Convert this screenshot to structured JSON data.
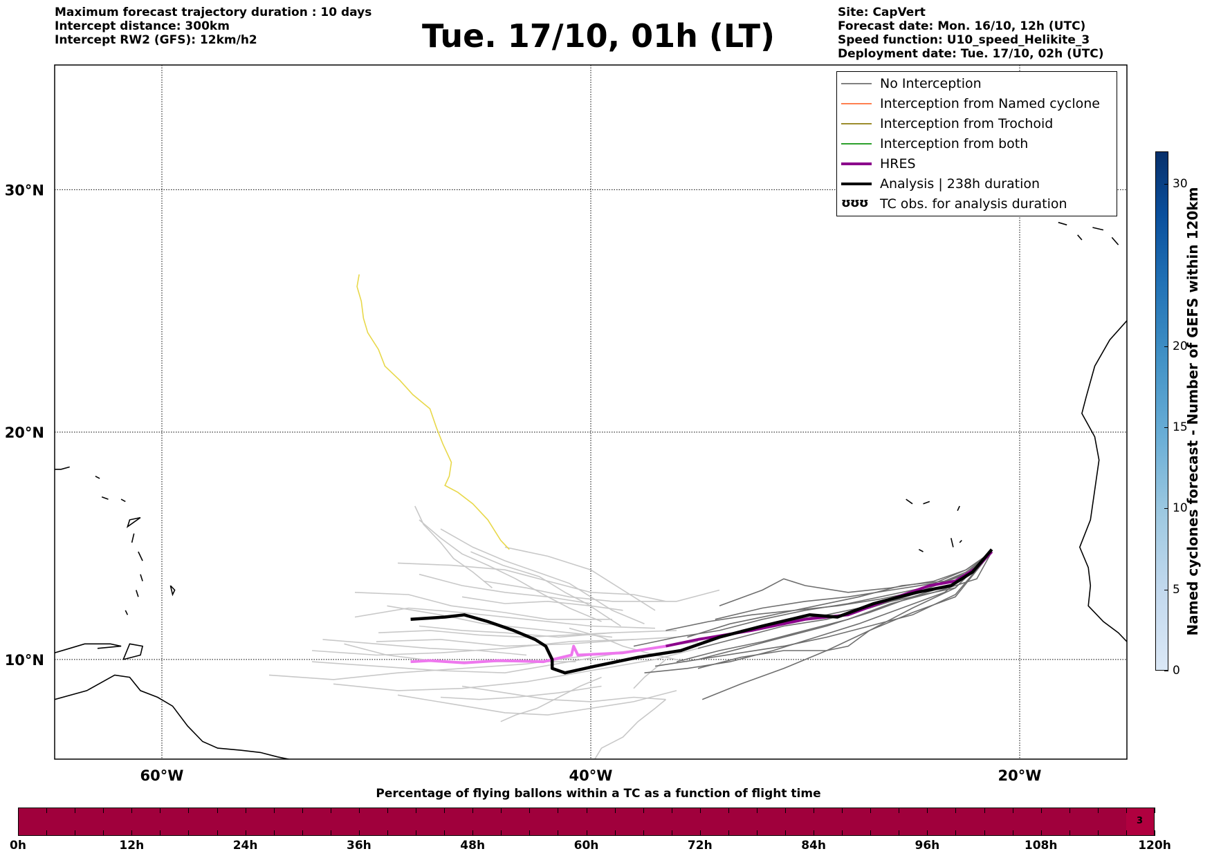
{
  "header_left": [
    "Maximum forecast trajectory duration : 10 days",
    "Intercept distance: 300km",
    "Intercept RW2 (GFS):  12km/h2"
  ],
  "title": "Tue. 17/10, 01h (LT)",
  "header_right": [
    "Site: CapVert",
    "Forecast date: Mon. 16/10, 12h (UTC)",
    "Speed function: U10_speed_Helikite_3",
    "Deployment date: Tue. 17/10, 02h (UTC)"
  ],
  "map": {
    "lat_labels": [
      "30°N",
      "20°N",
      "10°N"
    ],
    "lon_labels": [
      "60°W",
      "40°W",
      "20°W"
    ],
    "lat_range": [
      5.5,
      34.8
    ],
    "lon_range": [
      -65,
      -15
    ]
  },
  "legend": [
    {
      "label": "No Interception",
      "color": "#808080",
      "width": 1.5
    },
    {
      "label": "Interception from Named cyclone",
      "color": "#ff7f50",
      "width": 1.5
    },
    {
      "label": "Interception from Trochoid",
      "color": "#9c8c2c",
      "width": 1.5
    },
    {
      "label": "Interception from both",
      "color": "#2ca02c",
      "width": 1.5
    },
    {
      "label": "HRES",
      "color": "#8b008b",
      "width": 4
    },
    {
      "label": "Analysis | 238h duration",
      "color": "#000000",
      "width": 4
    },
    {
      "label": "TC obs. for analysis duration",
      "symbol": "ʊʊʊ"
    }
  ],
  "colorbar_right": {
    "label": "Named cyclones forecast - Number of GEFS within 120km",
    "ticks": [
      "0",
      "5",
      "10",
      "15",
      "20",
      "30"
    ],
    "range": [
      0,
      32
    ]
  },
  "colorbar_bottom": {
    "title": "Percentage of flying ballons within a TC as a function of flight time",
    "ticks": [
      "0h",
      "12h",
      "24h",
      "36h",
      "48h",
      "60h",
      "72h",
      "84h",
      "96h",
      "108h",
      "120h"
    ],
    "last_cell_value": "3",
    "color": "#a0003c"
  },
  "tracks": {
    "analysis": [
      [
        -48.4,
        11.8
      ],
      [
        -46.8,
        11.9
      ],
      [
        -45.9,
        12.0
      ],
      [
        -44.8,
        11.7
      ],
      [
        -43.6,
        11.3
      ],
      [
        -42.6,
        10.9
      ],
      [
        -42.1,
        10.6
      ],
      [
        -41.8,
        10.0
      ],
      [
        -41.8,
        9.6
      ],
      [
        -41.2,
        9.4
      ],
      [
        -39.8,
        9.7
      ],
      [
        -37.8,
        10.1
      ],
      [
        -35.8,
        10.4
      ],
      [
        -34,
        11.0
      ],
      [
        -32,
        11.5
      ],
      [
        -29.8,
        12.0
      ],
      [
        -28.5,
        11.9
      ],
      [
        -26.8,
        12.5
      ],
      [
        -24.8,
        13.0
      ],
      [
        -23.2,
        13.3
      ],
      [
        -22.2,
        13.9
      ],
      [
        -21.3,
        14.9
      ]
    ],
    "hres": [
      [
        -48.4,
        9.9
      ],
      [
        -47.5,
        9.95
      ],
      [
        -45.9,
        9.85
      ],
      [
        -44.3,
        9.95
      ],
      [
        -42.2,
        9.9
      ],
      [
        -40.9,
        10.2
      ],
      [
        -40.8,
        10.6
      ],
      [
        -40.6,
        10.2
      ],
      [
        -38.5,
        10.3
      ],
      [
        -36.5,
        10.6
      ],
      [
        -35,
        10.9
      ],
      [
        -32.5,
        11.3
      ],
      [
        -30,
        11.8
      ],
      [
        -28,
        12.0
      ],
      [
        -26.3,
        12.6
      ],
      [
        -24.2,
        13.3
      ],
      [
        -23,
        13.5
      ],
      [
        -22,
        14.1
      ],
      [
        -21.3,
        14.8
      ]
    ],
    "yellow": [
      [
        -50.8,
        26.6
      ],
      [
        -50.9,
        26.1
      ],
      [
        -50.7,
        25.5
      ],
      [
        -50.6,
        24.8
      ],
      [
        -50.4,
        24.2
      ],
      [
        -49.9,
        23.5
      ],
      [
        -49.6,
        22.8
      ],
      [
        -48.9,
        22.2
      ],
      [
        -48.3,
        21.6
      ],
      [
        -47.5,
        21.0
      ],
      [
        -47.2,
        20.2
      ],
      [
        -46.9,
        19.5
      ],
      [
        -46.5,
        18.7
      ],
      [
        -46.6,
        18.1
      ],
      [
        -46.8,
        17.7
      ],
      [
        -46.2,
        17.4
      ],
      [
        -45.5,
        16.9
      ],
      [
        -44.8,
        16.2
      ],
      [
        -44.2,
        15.3
      ],
      [
        -43.8,
        14.9
      ]
    ],
    "light_gray": [
      [
        [
          -53,
          9.9
        ],
        [
          -50,
          9.7
        ],
        [
          -47,
          9.5
        ],
        [
          -44,
          9.4
        ],
        [
          -41,
          9.9
        ],
        [
          -38,
          10.4
        ],
        [
          -35,
          10.8
        ]
      ],
      [
        [
          -55,
          9.3
        ],
        [
          -52,
          9.1
        ],
        [
          -49,
          9.4
        ],
        [
          -46,
          9.6
        ],
        [
          -43,
          9.8
        ],
        [
          -40,
          10.2
        ],
        [
          -37,
          10.5
        ]
      ],
      [
        [
          -52,
          8.9
        ],
        [
          -49,
          8.6
        ],
        [
          -46,
          8.7
        ],
        [
          -43,
          9.0
        ],
        [
          -40,
          9.5
        ],
        [
          -37,
          10.0
        ],
        [
          -35,
          10.5
        ]
      ],
      [
        [
          -50,
          10.8
        ],
        [
          -47,
          10.9
        ],
        [
          -44,
          10.6
        ],
        [
          -41,
          10.7
        ],
        [
          -38,
          10.9
        ],
        [
          -36,
          11.0
        ]
      ],
      [
        [
          -51,
          11.9
        ],
        [
          -48.5,
          12.3
        ],
        [
          -46,
          12.1
        ],
        [
          -43,
          11.8
        ],
        [
          -40,
          11.5
        ],
        [
          -37,
          11.4
        ]
      ],
      [
        [
          -48,
          11.5
        ],
        [
          -46,
          11.3
        ],
        [
          -44,
          11.2
        ],
        [
          -41.5,
          11.0
        ],
        [
          -39,
          11.2
        ],
        [
          -36,
          11.3
        ]
      ],
      [
        [
          -53,
          10.4
        ],
        [
          -50,
          10.2
        ],
        [
          -47,
          10.3
        ],
        [
          -44,
          10.5
        ],
        [
          -41,
          10.8
        ],
        [
          -38,
          10.9
        ]
      ],
      [
        [
          -51,
          13.0
        ],
        [
          -48.5,
          12.9
        ],
        [
          -46.5,
          12.4
        ],
        [
          -44,
          12.1
        ],
        [
          -42,
          11.8
        ],
        [
          -39,
          11.8
        ]
      ],
      [
        [
          -49,
          14.3
        ],
        [
          -46.5,
          14.2
        ],
        [
          -44,
          14.0
        ],
        [
          -42,
          13.5
        ],
        [
          -40,
          13.0
        ],
        [
          -38,
          12.9
        ],
        [
          -36.5,
          12.6
        ]
      ],
      [
        [
          -49.5,
          12.4
        ],
        [
          -47,
          12.0
        ],
        [
          -45,
          11.6
        ],
        [
          -43,
          11.4
        ],
        [
          -41,
          11.2
        ],
        [
          -39,
          11.0
        ]
      ],
      [
        [
          -47,
          15.8
        ],
        [
          -45.5,
          15.0
        ],
        [
          -44,
          14.4
        ],
        [
          -42.5,
          13.9
        ],
        [
          -41,
          13.4
        ],
        [
          -40,
          12.8
        ],
        [
          -39,
          12.2
        ],
        [
          -37.5,
          11.6
        ]
      ],
      [
        [
          -48,
          16.2
        ],
        [
          -47,
          15.4
        ],
        [
          -46,
          14.7
        ],
        [
          -44.8,
          14.2
        ],
        [
          -43.5,
          13.6
        ],
        [
          -42.2,
          12.9
        ],
        [
          -41,
          12.3
        ],
        [
          -39.5,
          11.7
        ]
      ],
      [
        [
          -44,
          15.0
        ],
        [
          -42,
          14.6
        ],
        [
          -40,
          14.0
        ],
        [
          -39,
          13.4
        ],
        [
          -38,
          12.8
        ],
        [
          -37,
          12.2
        ]
      ],
      [
        [
          -48.2,
          16.8
        ],
        [
          -47.8,
          16.0
        ],
        [
          -47,
          15.2
        ],
        [
          -46.4,
          14.5
        ],
        [
          -45.5,
          13.9
        ],
        [
          -44.6,
          13.2
        ]
      ],
      [
        [
          -45.6,
          14.8
        ],
        [
          -44.1,
          14.2
        ],
        [
          -42.4,
          13.7
        ],
        [
          -41.2,
          13.0
        ],
        [
          -40.2,
          12.5
        ],
        [
          -39.4,
          12.0
        ],
        [
          -38.6,
          11.5
        ]
      ],
      [
        [
          -46,
          8.8
        ],
        [
          -44,
          8.5
        ],
        [
          -42,
          8.2
        ],
        [
          -40,
          8.1
        ],
        [
          -38,
          8.3
        ],
        [
          -36.5,
          8.2
        ]
      ],
      [
        [
          -49,
          8.4
        ],
        [
          -46.5,
          8.0
        ],
        [
          -44,
          7.6
        ],
        [
          -42,
          7.5
        ],
        [
          -40,
          7.8
        ],
        [
          -38,
          8.1
        ],
        [
          -36,
          8.6
        ]
      ],
      [
        [
          -47,
          8.3
        ],
        [
          -45.2,
          8.2
        ],
        [
          -43.5,
          8.3
        ],
        [
          -41.5,
          8.5
        ],
        [
          -39.5,
          8.8
        ]
      ],
      [
        [
          -40,
          5.2
        ],
        [
          -39.5,
          6.0
        ],
        [
          -38.5,
          6.5
        ],
        [
          -37.8,
          7.2
        ],
        [
          -37.0,
          7.8
        ],
        [
          -36.5,
          8.2
        ]
      ],
      [
        [
          -44.2,
          7.2
        ],
        [
          -43.5,
          7.5
        ],
        [
          -42.5,
          7.8
        ],
        [
          -41.5,
          8.3
        ],
        [
          -40.5,
          8.8
        ],
        [
          -39.5,
          9.2
        ]
      ],
      [
        [
          -51.5,
          10.7
        ],
        [
          -49.5,
          10.2
        ],
        [
          -47,
          9.9
        ],
        [
          -45,
          9.9
        ],
        [
          -42.8,
          9.9
        ],
        [
          -40.7,
          9.9
        ]
      ],
      [
        [
          -49.9,
          11.2
        ],
        [
          -47.5,
          11.3
        ],
        [
          -45.2,
          11.1
        ],
        [
          -43,
          11.0
        ],
        [
          -41,
          11.1
        ],
        [
          -39,
          11.2
        ]
      ],
      [
        [
          -45,
          13.5
        ],
        [
          -43,
          13.2
        ],
        [
          -41,
          12.8
        ],
        [
          -39,
          12.6
        ],
        [
          -36,
          12.6
        ],
        [
          -34,
          13.1
        ]
      ],
      [
        [
          -46,
          12.8
        ],
        [
          -44,
          12.5
        ],
        [
          -42,
          12.6
        ],
        [
          -40,
          12.4
        ],
        [
          -38.5,
          12.2
        ]
      ],
      [
        [
          -48,
          13.8
        ],
        [
          -46,
          13.3
        ],
        [
          -44,
          13.0
        ],
        [
          -42,
          12.8
        ],
        [
          -40,
          12.5
        ]
      ],
      [
        [
          -52.5,
          10.9
        ],
        [
          -50,
          10.7
        ],
        [
          -47.5,
          10.5
        ],
        [
          -45.2,
          10.4
        ],
        [
          -43,
          10.2
        ]
      ],
      [
        [
          -41,
          11.4
        ],
        [
          -39.5,
          11.0
        ],
        [
          -38.5,
          10.6
        ],
        [
          -37,
          10.2
        ],
        [
          -35.5,
          9.9
        ]
      ],
      [
        [
          -38,
          8.7
        ],
        [
          -37.5,
          9.2
        ],
        [
          -37,
          9.6
        ],
        [
          -36.5,
          10.0
        ]
      ]
    ],
    "dark_gray": [
      [
        [
          -35,
          10.0
        ],
        [
          -33,
          10.5
        ],
        [
          -31,
          11.0
        ],
        [
          -29,
          11.5
        ],
        [
          -27,
          12.1
        ],
        [
          -25,
          12.8
        ],
        [
          -23,
          13.2
        ],
        [
          -21.3,
          14.8
        ]
      ],
      [
        [
          -35,
          10.5
        ],
        [
          -33,
          11.0
        ],
        [
          -31,
          11.5
        ],
        [
          -29,
          11.8
        ],
        [
          -27,
          12.3
        ],
        [
          -25,
          12.9
        ],
        [
          -23,
          13.4
        ],
        [
          -21.3,
          14.8
        ]
      ],
      [
        [
          -36,
          9.9
        ],
        [
          -34,
          10.4
        ],
        [
          -32,
          10.8
        ],
        [
          -30,
          11.3
        ],
        [
          -28,
          11.8
        ],
        [
          -26,
          12.5
        ],
        [
          -24,
          13.0
        ],
        [
          -22,
          13.6
        ],
        [
          -21.3,
          14.8
        ]
      ],
      [
        [
          -35.5,
          11.0
        ],
        [
          -33.5,
          11.6
        ],
        [
          -31.5,
          12.0
        ],
        [
          -29.5,
          12.4
        ],
        [
          -27.5,
          12.8
        ],
        [
          -25.5,
          13.3
        ],
        [
          -23.5,
          13.5
        ],
        [
          -22,
          14.0
        ],
        [
          -21.3,
          14.8
        ]
      ],
      [
        [
          -34,
          12.4
        ],
        [
          -32,
          13.1
        ],
        [
          -31,
          13.6
        ],
        [
          -30,
          13.3
        ],
        [
          -28,
          13.0
        ],
        [
          -26,
          13.2
        ],
        [
          -24,
          13.5
        ],
        [
          -22.5,
          14.0
        ],
        [
          -21.3,
          14.8
        ]
      ],
      [
        [
          -38,
          10.6
        ],
        [
          -36,
          11.0
        ],
        [
          -34,
          11.3
        ],
        [
          -32,
          11.8
        ],
        [
          -30,
          12.2
        ],
        [
          -28,
          12.5
        ],
        [
          -26,
          12.9
        ],
        [
          -24,
          13.3
        ],
        [
          -22.5,
          13.9
        ],
        [
          -21.3,
          14.8
        ]
      ],
      [
        [
          -37,
          9.7
        ],
        [
          -35,
          10.0
        ],
        [
          -33,
          10.3
        ],
        [
          -31,
          10.6
        ],
        [
          -29,
          11.0
        ],
        [
          -27,
          11.5
        ],
        [
          -25,
          12.0
        ],
        [
          -23,
          12.9
        ],
        [
          -21.3,
          14.8
        ]
      ],
      [
        [
          -35,
          9.6
        ],
        [
          -33,
          10.1
        ],
        [
          -31,
          10.4
        ],
        [
          -29,
          10.4
        ],
        [
          -28,
          10.6
        ],
        [
          -27,
          11.3
        ],
        [
          -25,
          12.1
        ],
        [
          -23,
          12.8
        ],
        [
          -21.3,
          14.8
        ]
      ],
      [
        [
          -37.5,
          9.4
        ],
        [
          -35.5,
          9.6
        ],
        [
          -33.5,
          9.9
        ],
        [
          -31.5,
          10.4
        ],
        [
          -29.5,
          11.0
        ],
        [
          -27.5,
          11.6
        ],
        [
          -25.5,
          12.3
        ],
        [
          -23.5,
          13.0
        ],
        [
          -21.3,
          14.8
        ]
      ],
      [
        [
          -34.8,
          8.2
        ],
        [
          -33,
          8.9
        ],
        [
          -31,
          9.6
        ],
        [
          -29,
          10.4
        ],
        [
          -27,
          11.3
        ],
        [
          -25,
          12.3
        ],
        [
          -23,
          13.2
        ],
        [
          -21.3,
          14.8
        ]
      ],
      [
        [
          -34.2,
          11.8
        ],
        [
          -32,
          12.3
        ],
        [
          -30,
          12.6
        ],
        [
          -28,
          12.8
        ],
        [
          -26,
          13.1
        ],
        [
          -24,
          13.4
        ],
        [
          -22.5,
          14.0
        ],
        [
          -21.3,
          14.8
        ]
      ],
      [
        [
          -36.5,
          11.3
        ],
        [
          -34.5,
          11.7
        ],
        [
          -32.5,
          12.0
        ],
        [
          -30.5,
          12.2
        ],
        [
          -28.5,
          12.4
        ],
        [
          -26.5,
          12.7
        ],
        [
          -24.5,
          13.1
        ],
        [
          -22.5,
          13.8
        ],
        [
          -21.3,
          14.8
        ]
      ],
      [
        [
          -33,
          11.3
        ],
        [
          -31,
          11.7
        ],
        [
          -29,
          12.0
        ],
        [
          -27,
          12.4
        ],
        [
          -25,
          12.8
        ],
        [
          -23,
          13.4
        ],
        [
          -21.3,
          14.8
        ]
      ]
    ]
  }
}
